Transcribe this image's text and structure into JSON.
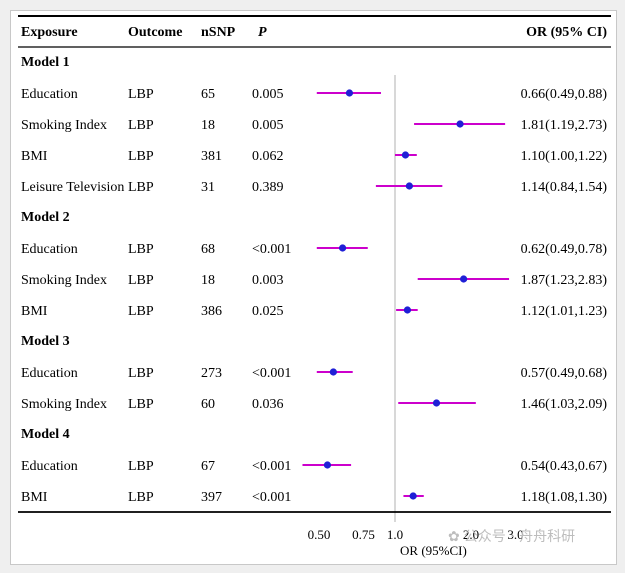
{
  "chart_data": {
    "type": "forest",
    "headers": {
      "exposure": "Exposure",
      "outcome": "Outcome",
      "nsnp": "nSNP",
      "p": "P",
      "or": "OR (95% CI)"
    },
    "xlabel": "OR (95%CI)",
    "scale": "log",
    "xlim": [
      0.42,
      3.1
    ],
    "reference_line": 1.0,
    "ticks": [
      {
        "value": 0.5,
        "label": "0.50"
      },
      {
        "value": 0.75,
        "label": "0.75"
      },
      {
        "value": 1.0,
        "label": "1.0"
      },
      {
        "value": 2.0,
        "label": "2.0"
      },
      {
        "value": 3.0,
        "label": "3.0"
      }
    ],
    "colors": {
      "ci_line": "#cc00cc",
      "point": "#1f1fd6",
      "ref_line": "#b0b0b0"
    },
    "groups": [
      {
        "name": "Model 1",
        "rows": [
          {
            "exposure": "Education",
            "outcome": "LBP",
            "nsnp": "65",
            "p": "0.005",
            "or": 0.66,
            "lo": 0.49,
            "hi": 0.88,
            "label": "0.66(0.49,0.88)"
          },
          {
            "exposure": "Smoking Index",
            "outcome": "LBP",
            "nsnp": "18",
            "p": "0.005",
            "or": 1.81,
            "lo": 1.19,
            "hi": 2.73,
            "label": "1.81(1.19,2.73)"
          },
          {
            "exposure": "BMI",
            "outcome": "LBP",
            "nsnp": "381",
            "p": "0.062",
            "or": 1.1,
            "lo": 1.0,
            "hi": 1.22,
            "label": "1.10(1.00,1.22)"
          },
          {
            "exposure": "Leisure Television",
            "outcome": "LBP",
            "nsnp": "31",
            "p": "0.389",
            "or": 1.14,
            "lo": 0.84,
            "hi": 1.54,
            "label": "1.14(0.84,1.54)"
          }
        ]
      },
      {
        "name": "Model 2",
        "rows": [
          {
            "exposure": "Education",
            "outcome": "LBP",
            "nsnp": "68",
            "p": "<0.001",
            "or": 0.62,
            "lo": 0.49,
            "hi": 0.78,
            "label": "0.62(0.49,0.78)"
          },
          {
            "exposure": "Smoking Index",
            "outcome": "LBP",
            "nsnp": "18",
            "p": "0.003",
            "or": 1.87,
            "lo": 1.23,
            "hi": 2.83,
            "label": "1.87(1.23,2.83)"
          },
          {
            "exposure": "BMI",
            "outcome": "LBP",
            "nsnp": "386",
            "p": "0.025",
            "or": 1.12,
            "lo": 1.01,
            "hi": 1.23,
            "label": "1.12(1.01,1.23)"
          }
        ]
      },
      {
        "name": "Model 3",
        "rows": [
          {
            "exposure": "Education",
            "outcome": "LBP",
            "nsnp": "273",
            "p": "<0.001",
            "or": 0.57,
            "lo": 0.49,
            "hi": 0.68,
            "label": "0.57(0.49,0.68)"
          },
          {
            "exposure": "Smoking Index",
            "outcome": "LBP",
            "nsnp": "60",
            "p": "0.036",
            "or": 1.46,
            "lo": 1.03,
            "hi": 2.09,
            "label": "1.46(1.03,2.09)"
          }
        ]
      },
      {
        "name": "Model 4",
        "rows": [
          {
            "exposure": "Education",
            "outcome": "LBP",
            "nsnp": "67",
            "p": "<0.001",
            "or": 0.54,
            "lo": 0.43,
            "hi": 0.67,
            "label": "0.54(0.43,0.67)"
          },
          {
            "exposure": "BMI",
            "outcome": "LBP",
            "nsnp": "397",
            "p": "<0.001",
            "or": 1.18,
            "lo": 1.08,
            "hi": 1.3,
            "label": "1.18(1.08,1.30)"
          }
        ]
      }
    ]
  },
  "watermark": {
    "text": "公众号 · 舟舟科研"
  }
}
